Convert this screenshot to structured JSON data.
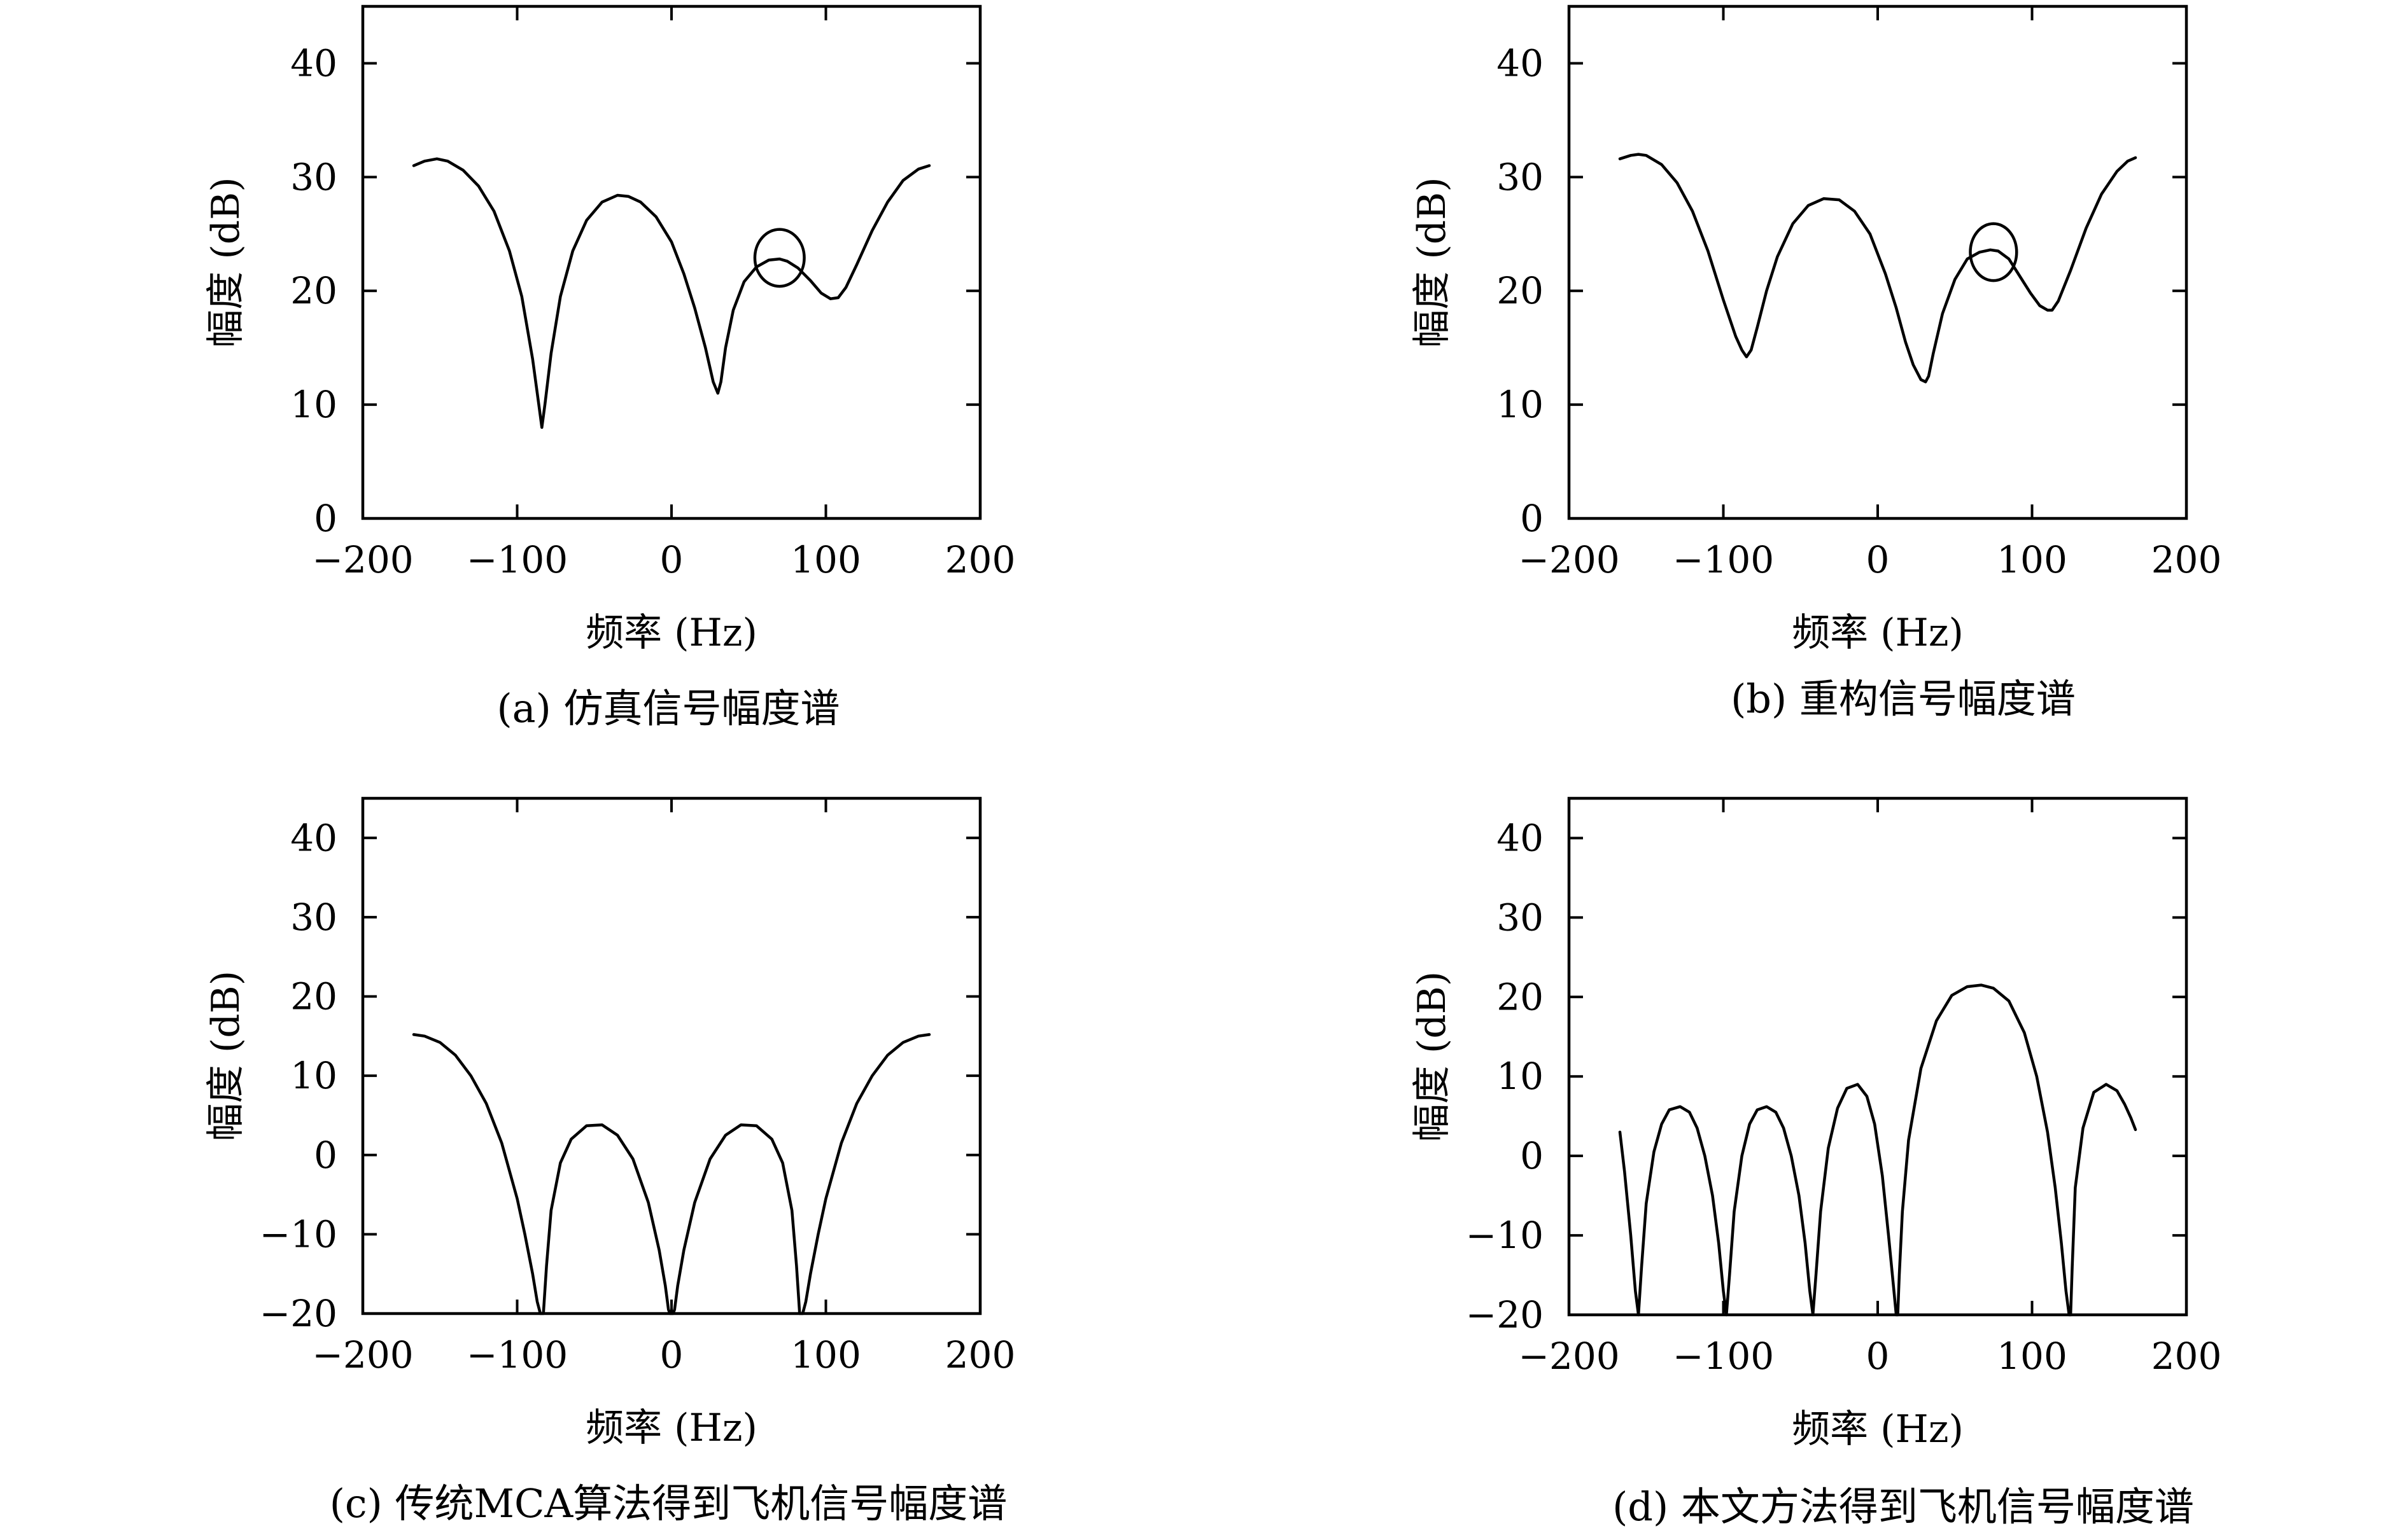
{
  "chart_data": [
    {
      "type": "line",
      "caption": "(a) 仿真信号幅度谱",
      "xlabel": "频率 (Hz)",
      "ylabel": "幅度 (dB)",
      "xlim": [
        -200,
        200
      ],
      "ylim": [
        0,
        45
      ],
      "xticks": [
        -200,
        -100,
        0,
        100,
        200
      ],
      "xtick_labels": [
        "−200",
        "−100",
        "0",
        "100",
        "200"
      ],
      "yticks": [
        0,
        10,
        20,
        30,
        40
      ],
      "ytick_labels": [
        "0",
        "10",
        "20",
        "30",
        "40"
      ],
      "grid": false,
      "series": [
        {
          "x": [
            -167,
            -160,
            -152,
            -145,
            -135,
            -125,
            -115,
            -105,
            -97,
            -90,
            -86,
            -84,
            -82,
            -78,
            -72,
            -64,
            -55,
            -45,
            -35,
            -28,
            -20,
            -10,
            0,
            8,
            15,
            22,
            27,
            30,
            32,
            35,
            40,
            47,
            55,
            63,
            70,
            75,
            82,
            90,
            97,
            103,
            108,
            113,
            120,
            130,
            140,
            150,
            160,
            167
          ],
          "y": [
            31,
            31.4,
            31.6,
            31.4,
            30.6,
            29.2,
            27,
            23.5,
            19.5,
            14,
            10,
            8,
            10,
            14.5,
            19.5,
            23.5,
            26.2,
            27.8,
            28.4,
            28.3,
            27.8,
            26.5,
            24.3,
            21.5,
            18.5,
            15,
            12,
            11,
            12,
            15,
            18.3,
            20.8,
            22.1,
            22.7,
            22.8,
            22.6,
            22,
            20.9,
            19.8,
            19.3,
            19.4,
            20.3,
            22.3,
            25.3,
            27.8,
            29.7,
            30.7,
            31
          ]
        }
      ],
      "annotation_circle": {
        "x": 70,
        "y": 22.9,
        "rx": 16,
        "ry": 2.5
      }
    },
    {
      "type": "line",
      "caption": "(b) 重构信号幅度谱",
      "xlabel": "频率 (Hz)",
      "ylabel": "幅度 (dB)",
      "xlim": [
        -200,
        200
      ],
      "ylim": [
        0,
        45
      ],
      "xticks": [
        -200,
        -100,
        0,
        100,
        200
      ],
      "xtick_labels": [
        "−200",
        "−100",
        "0",
        "100",
        "200"
      ],
      "yticks": [
        0,
        10,
        20,
        30,
        40
      ],
      "ytick_labels": [
        "0",
        "10",
        "20",
        "30",
        "40"
      ],
      "grid": false,
      "series": [
        {
          "x": [
            -167,
            -160,
            -155,
            -150,
            -140,
            -130,
            -120,
            -110,
            -100,
            -92,
            -88,
            -85,
            -82,
            -78,
            -72,
            -65,
            -55,
            -45,
            -35,
            -25,
            -15,
            -5,
            5,
            12,
            18,
            23,
            28,
            31,
            33,
            36,
            42,
            50,
            58,
            66,
            73,
            78,
            85,
            92,
            99,
            105,
            110,
            113,
            117,
            125,
            135,
            145,
            155,
            162,
            167
          ],
          "y": [
            31.6,
            31.9,
            32,
            31.9,
            31.1,
            29.5,
            27,
            23.5,
            19.2,
            16,
            14.8,
            14.2,
            14.8,
            16.8,
            20,
            23,
            25.9,
            27.5,
            28.1,
            28,
            27,
            25,
            21.5,
            18.5,
            15.5,
            13.5,
            12.2,
            12,
            12.5,
            14.5,
            18,
            21,
            22.8,
            23.4,
            23.6,
            23.5,
            22.8,
            21.3,
            19.8,
            18.7,
            18.3,
            18.3,
            19.1,
            21.8,
            25.5,
            28.5,
            30.5,
            31.4,
            31.7
          ]
        }
      ],
      "annotation_circle": {
        "x": 75,
        "y": 23.4,
        "rx": 15,
        "ry": 2.5
      }
    },
    {
      "type": "line",
      "caption": "(c) 传统MCA算法得到飞机信号幅度谱",
      "xlabel": "频率 (Hz)",
      "ylabel": "幅度 (dB)",
      "xlim": [
        -200,
        200
      ],
      "ylim": [
        -20,
        45
      ],
      "xticks": [
        -200,
        -100,
        0,
        100,
        200
      ],
      "xtick_labels": [
        "−200",
        "−100",
        "0",
        "100",
        "200"
      ],
      "yticks": [
        -20,
        -10,
        0,
        10,
        20,
        30,
        40
      ],
      "ytick_labels": [
        "−20",
        "−10",
        "0",
        "10",
        "20",
        "30",
        "40"
      ],
      "grid": false,
      "series": [
        {
          "x": [
            -167,
            -160,
            -150,
            -140,
            -130,
            -120,
            -110,
            -100,
            -95,
            -90,
            -87,
            -85,
            -84,
            -83,
            -81,
            -78,
            -72,
            -65,
            -55,
            -45,
            -35,
            -25,
            -15,
            -8,
            -4,
            -2,
            -1,
            0,
            1,
            2,
            4,
            8,
            15,
            25,
            35,
            45,
            55,
            65,
            72,
            78,
            81,
            83,
            84,
            85,
            87,
            90,
            95,
            100,
            110,
            120,
            130,
            140,
            150,
            160,
            167
          ],
          "y": [
            15.2,
            15,
            14.2,
            12.6,
            10,
            6.5,
            1.5,
            -5.5,
            -10,
            -15,
            -18.5,
            -20,
            -20,
            -20,
            -14,
            -7,
            -1,
            2,
            3.7,
            3.8,
            2.5,
            -0.5,
            -6,
            -12,
            -16.5,
            -19.5,
            -20,
            -20,
            -20,
            -19.5,
            -16.5,
            -12,
            -6,
            -0.5,
            2.5,
            3.8,
            3.7,
            2,
            -1,
            -7,
            -14,
            -20,
            -20,
            -20,
            -18.5,
            -15,
            -10,
            -5.5,
            1.5,
            6.5,
            10,
            12.6,
            14.2,
            15,
            15.2
          ]
        }
      ]
    },
    {
      "type": "line",
      "caption": "(d) 本文方法得到飞机信号幅度谱",
      "xlabel": "频率 (Hz)",
      "ylabel": "幅度 (dB)",
      "xlim": [
        -200,
        200
      ],
      "ylim": [
        -20,
        45
      ],
      "xticks": [
        -200,
        -100,
        0,
        100,
        200
      ],
      "xtick_labels": [
        "−200",
        "−100",
        "0",
        "100",
        "200"
      ],
      "yticks": [
        -20,
        -10,
        0,
        10,
        20,
        30,
        40
      ],
      "ytick_labels": [
        "−20",
        "−10",
        "0",
        "10",
        "20",
        "30",
        "40"
      ],
      "grid": false,
      "series": [
        {
          "x": [
            -167,
            -164,
            -160,
            -157,
            -155,
            -153,
            -150,
            -145,
            -140,
            -135,
            -128,
            -122,
            -117,
            -112,
            -107,
            -103,
            -100,
            -98,
            -96,
            -93,
            -88,
            -83,
            -78,
            -72,
            -66,
            -61,
            -56,
            -51,
            -47,
            -44,
            -42,
            -40,
            -37,
            -32,
            -26,
            -20,
            -13,
            -7,
            -2,
            3,
            7,
            10,
            12,
            13,
            14,
            16,
            20,
            28,
            38,
            48,
            58,
            67,
            75,
            85,
            95,
            103,
            110,
            115,
            119,
            122,
            124,
            125,
            126,
            128,
            133,
            140,
            148,
            155,
            160,
            164,
            167
          ],
          "y": [
            3,
            -2,
            -10,
            -17,
            -20,
            -14,
            -6,
            0.5,
            4,
            5.8,
            6.2,
            5.5,
            3.5,
            0,
            -5,
            -11,
            -17,
            -20,
            -15,
            -7,
            0,
            4,
            5.8,
            6.2,
            5.5,
            3.5,
            0,
            -5,
            -11,
            -17,
            -20,
            -15,
            -7,
            1,
            6,
            8.5,
            9,
            7.5,
            4,
            -2.5,
            -10,
            -16,
            -20,
            -20,
            -15,
            -7,
            2,
            11,
            17,
            20.2,
            21.3,
            21.5,
            21.1,
            19.5,
            15.5,
            10,
            3,
            -4,
            -11,
            -17,
            -20,
            -20,
            -14,
            -4,
            3.5,
            8,
            9,
            8.2,
            6.5,
            4.8,
            3.3
          ]
        }
      ]
    }
  ]
}
